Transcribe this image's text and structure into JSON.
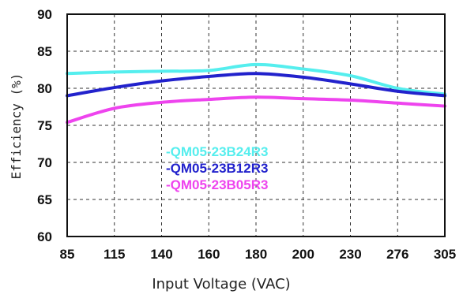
{
  "chart_data": {
    "type": "line",
    "title": "",
    "xlabel": "Input Voltage (VAC)",
    "ylabel": "Efficiency (%)",
    "categories": [
      "85",
      "115",
      "140",
      "160",
      "180",
      "200",
      "230",
      "276",
      "305"
    ],
    "yticks": [
      "90",
      "85",
      "80",
      "75",
      "70",
      "65",
      "60"
    ],
    "ylim": [
      60,
      90
    ],
    "grid": true,
    "legend_position": "center-left",
    "series": [
      {
        "name": "-QM05-23B24R3",
        "color": "#55eeee",
        "values": [
          82.0,
          82.2,
          82.3,
          82.4,
          83.2,
          82.6,
          81.7,
          80.0,
          79.2
        ]
      },
      {
        "name": "-QM05-23B12R3",
        "color": "#2222cc",
        "values": [
          79.0,
          80.1,
          81.0,
          81.6,
          82.0,
          81.5,
          80.6,
          79.6,
          79.0
        ]
      },
      {
        "name": "-QM05-23B05R3",
        "color": "#ee44ee",
        "values": [
          75.4,
          77.3,
          78.1,
          78.5,
          78.8,
          78.6,
          78.4,
          78.0,
          77.6
        ]
      }
    ]
  }
}
